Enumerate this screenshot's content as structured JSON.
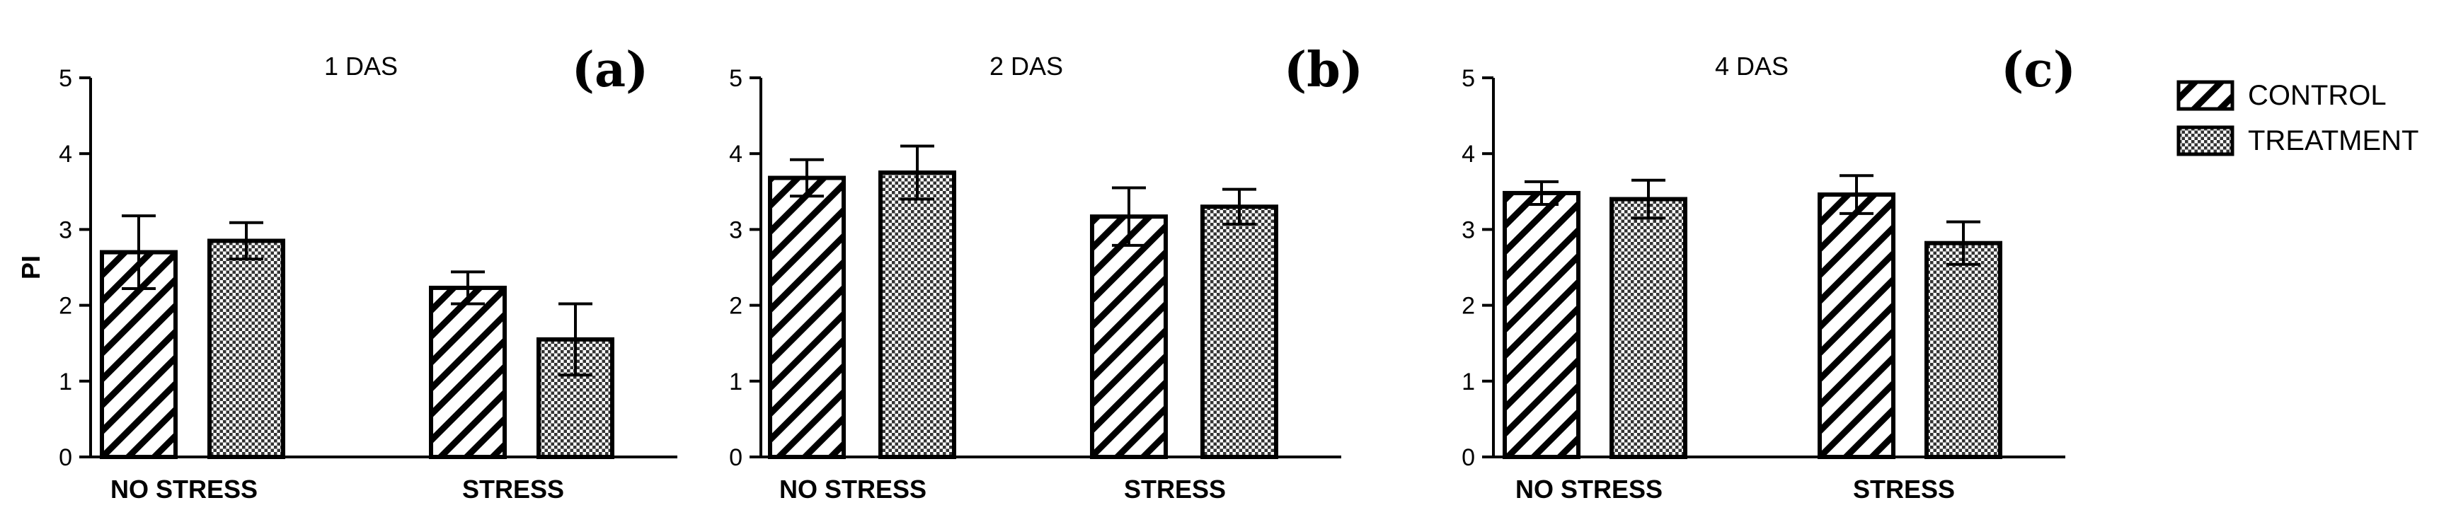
{
  "legend": {
    "control_label": "CONTROL",
    "treatment_label": "TREATMENT"
  },
  "chart_data": [
    {
      "type": "bar",
      "panel_label": "(a)",
      "title": "1 DAS",
      "ylabel": "PI",
      "xlabel": "",
      "ylim": [
        0,
        5
      ],
      "yticks": [
        "0",
        "1",
        "2",
        "3",
        "4",
        "5"
      ],
      "categories": [
        "NO STRESS",
        "STRESS"
      ],
      "series": [
        {
          "name": "CONTROL",
          "values": [
            2.7,
            2.23
          ],
          "errors": [
            0.48,
            0.21
          ]
        },
        {
          "name": "TREATMENT",
          "values": [
            2.85,
            1.55
          ],
          "errors": [
            0.24,
            0.47
          ]
        }
      ]
    },
    {
      "type": "bar",
      "panel_label": "(b)",
      "title": "2 DAS",
      "ylabel": "",
      "xlabel": "",
      "ylim": [
        0,
        5
      ],
      "yticks": [
        "0",
        "1",
        "2",
        "3",
        "4",
        "5"
      ],
      "categories": [
        "NO STRESS",
        "STRESS"
      ],
      "series": [
        {
          "name": "CONTROL",
          "values": [
            3.68,
            3.17
          ],
          "errors": [
            0.24,
            0.38
          ]
        },
        {
          "name": "TREATMENT",
          "values": [
            3.75,
            3.3
          ],
          "errors": [
            0.35,
            0.23
          ]
        }
      ]
    },
    {
      "type": "bar",
      "panel_label": "(c)",
      "title": "4 DAS",
      "ylabel": "",
      "xlabel": "",
      "ylim": [
        0,
        5
      ],
      "yticks": [
        "0",
        "1",
        "2",
        "3",
        "4",
        "5"
      ],
      "categories": [
        "NO STRESS",
        "STRESS"
      ],
      "series": [
        {
          "name": "CONTROL",
          "values": [
            3.48,
            3.46
          ],
          "errors": [
            0.15,
            0.25
          ]
        },
        {
          "name": "TREATMENT",
          "values": [
            3.4,
            2.82
          ],
          "errors": [
            0.25,
            0.28
          ]
        }
      ]
    }
  ]
}
